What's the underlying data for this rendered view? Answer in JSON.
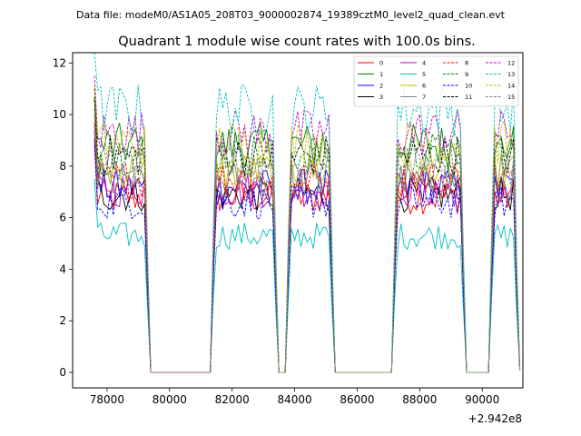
{
  "chart_data": {
    "type": "line",
    "file_label": "Data file: modeM0/AS1A05_208T03_9000002874_19389cztM0_level2_quad_clean.evt",
    "title": "Quadrant 1 module wise count rates with 100.0s bins.",
    "xlabel": "",
    "ylabel": "",
    "x_offset_label": "+2.942e8",
    "xlim": [
      76900,
      91300
    ],
    "ylim": [
      -0.6,
      12.4
    ],
    "x_ticks": [
      78000,
      80000,
      82000,
      84000,
      86000,
      88000,
      90000
    ],
    "y_ticks": [
      0,
      2,
      4,
      6,
      8,
      10,
      12
    ],
    "grid": false,
    "legend_position": "top-right",
    "legend_columns": 4,
    "segments": [
      [
        77600,
        79300
      ],
      [
        81400,
        83400
      ],
      [
        83800,
        85200
      ],
      [
        87200,
        89400
      ],
      [
        90300,
        91100
      ]
    ],
    "zero_level": 0.0,
    "series": [
      {
        "name": "0",
        "color": "#ff0000",
        "dash": "solid",
        "level": 6.8
      },
      {
        "name": "1",
        "color": "#008000",
        "dash": "solid",
        "level": 8.8
      },
      {
        "name": "2",
        "color": "#0000ff",
        "dash": "solid",
        "level": 7.2
      },
      {
        "name": "3",
        "color": "#000000",
        "dash": "solid",
        "level": 6.9
      },
      {
        "name": "4",
        "color": "#bf00bf",
        "dash": "solid",
        "level": 7.1
      },
      {
        "name": "5",
        "color": "#00bfbf",
        "dash": "solid",
        "level": 5.3
      },
      {
        "name": "6",
        "color": "#bfbf00",
        "dash": "solid",
        "level": 7.8
      },
      {
        "name": "7",
        "color": "#808080",
        "dash": "solid",
        "level": 7.4
      },
      {
        "name": "8",
        "color": "#ff0000",
        "dash": "dashed",
        "level": 7.5
      },
      {
        "name": "9",
        "color": "#008000",
        "dash": "dashed",
        "level": 8.5
      },
      {
        "name": "10",
        "color": "#0000ff",
        "dash": "dashed",
        "level": 6.6
      },
      {
        "name": "11",
        "color": "#000000",
        "dash": "dashed",
        "level": 8.4
      },
      {
        "name": "12",
        "color": "#bf00bf",
        "dash": "dashed",
        "level": 9.3
      },
      {
        "name": "13",
        "color": "#00bfbf",
        "dash": "dashed",
        "level": 10.2
      },
      {
        "name": "14",
        "color": "#bfbf00",
        "dash": "dashed",
        "level": 8.9
      },
      {
        "name": "15",
        "color": "#808080",
        "dash": "dashed",
        "level": 8.0
      }
    ]
  }
}
